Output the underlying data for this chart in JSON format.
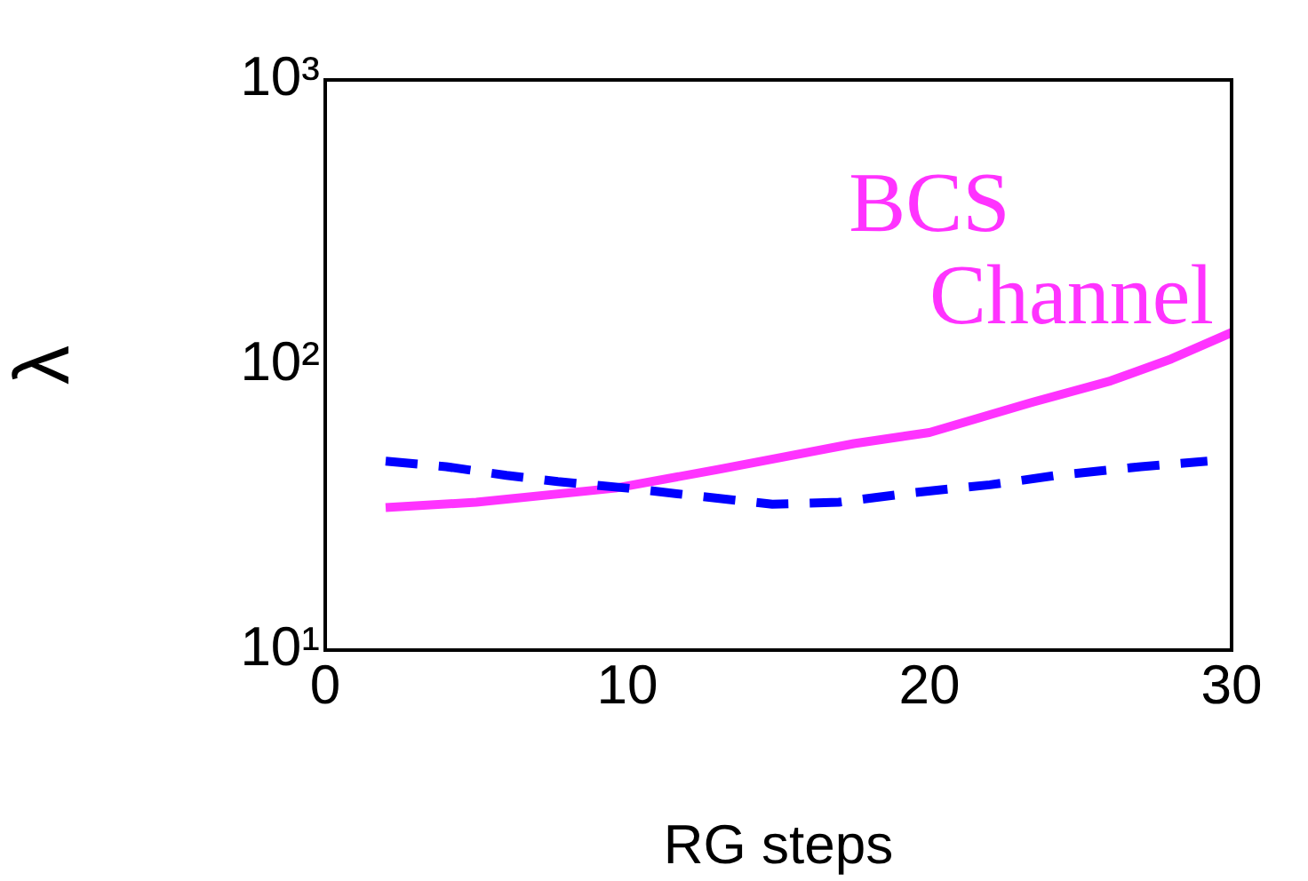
{
  "chart_data": {
    "type": "line",
    "xlabel": "RG steps",
    "ylabel": "λ",
    "log": "y",
    "grid": false,
    "legend": false,
    "marker": "none",
    "xlim": [
      0,
      30
    ],
    "xticks": [
      0,
      10,
      20,
      30
    ],
    "ylim": [
      10,
      1000
    ],
    "yticks": [
      {
        "value": 10,
        "label": "10¹"
      },
      {
        "value": 100,
        "label": "10²"
      },
      {
        "value": 1000,
        "label": "10³"
      }
    ],
    "series": [
      {
        "color": "#0000ff",
        "line_style": "dashed",
        "x": [
          2,
          4,
          6,
          7.7,
          10,
          12,
          14.8,
          17,
          19.5,
          22,
          24.2,
          27,
          29.2
        ],
        "values": [
          46,
          44,
          41,
          39,
          37,
          35,
          32.5,
          33,
          35.7,
          38,
          41,
          44,
          46
        ]
      },
      {
        "name": "BCS Channel",
        "color": "#ff33ff",
        "line_style": "solid",
        "x": [
          2,
          5,
          9.6,
          13,
          17.5,
          20,
          23.4,
          26,
          28,
          30
        ],
        "values": [
          31.6,
          33,
          37,
          43,
          53,
          58,
          74,
          88,
          105,
          130
        ]
      }
    ]
  }
}
